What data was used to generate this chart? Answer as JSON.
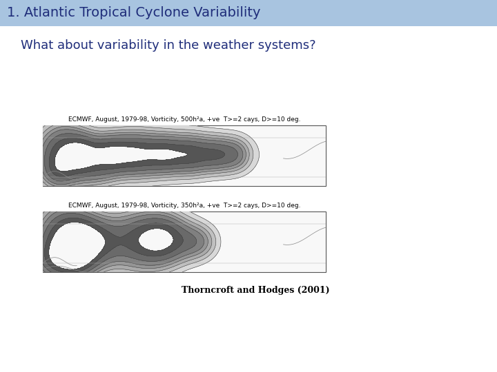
{
  "title": "1. Atlantic Tropical Cyclone Variability",
  "title_bg_color": "#a8c4e0",
  "title_text_color": "#1f2d7a",
  "title_fontsize": 14,
  "slide_bg_color": "#ffffff",
  "subtitle": "What about variability in the weather systems?",
  "subtitle_fontsize": 13,
  "subtitle_color": "#1f2d7a",
  "caption1": "ECMWF, August, 1979-98, Vorticity, 500h²a, +ve  T>=2 cays, D>=10 deg.",
  "caption2": "ECMWF, August, 1979-98, Vorticity, 350h²a, +ve  T>=2 cays, D>=10 deg.",
  "caption_fontsize": 6.5,
  "caption_color": "#000000",
  "citation": "Thorncroft and Hodges (2001)",
  "citation_fontsize": 9,
  "citation_color": "#000000",
  "map_border": "#555555"
}
